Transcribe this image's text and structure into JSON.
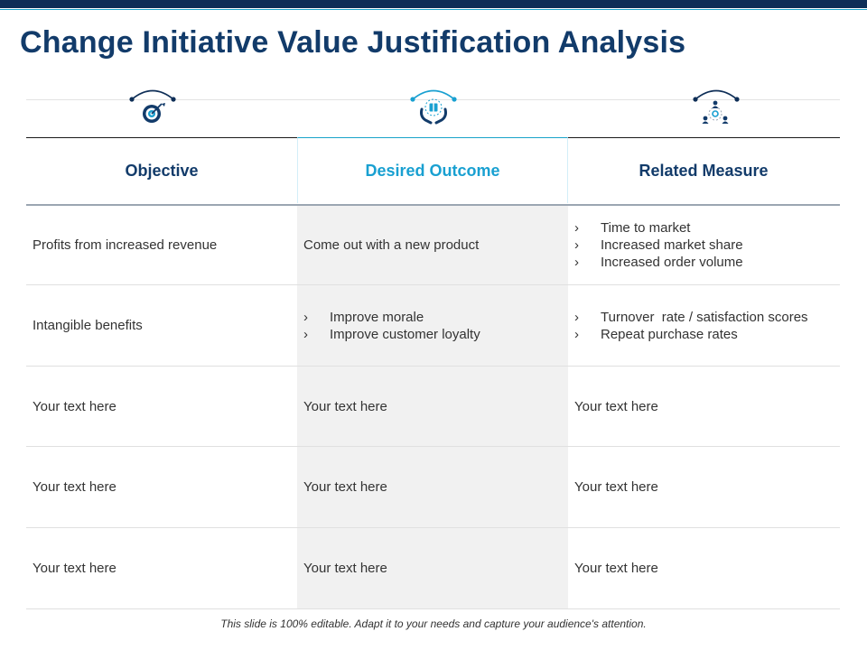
{
  "slide": {
    "title": "Change Initiative Value Justification Analysis",
    "footer": "This slide is 100% editable. Adapt it to your needs and capture your audience's attention."
  },
  "icons": [
    "target-icon",
    "hands-holding-gift-icon",
    "team-network-icon"
  ],
  "colors": {
    "dark_blue": "#123b6a",
    "accent": "#19a0d1",
    "mid_column_bg": "#f1f1f1"
  },
  "table": {
    "headers": [
      "Objective",
      "Desired Outcome",
      "Related Measure"
    ],
    "rows": [
      {
        "objective": "Profits from increased revenue",
        "outcome": [
          "Come out with a new product"
        ],
        "measure": [
          "Time to market",
          "Increased market share",
          "Increased order volume"
        ]
      },
      {
        "objective": "Intangible benefits",
        "outcome": [
          "Improve morale",
          "Improve customer loyalty"
        ],
        "measure": [
          "Turnover  rate / satisfaction scores",
          "Repeat purchase rates"
        ]
      },
      {
        "objective": "Your text here",
        "outcome": [
          "Your text here"
        ],
        "measure": [
          "Your text here"
        ]
      },
      {
        "objective": "Your text here",
        "outcome": [
          "Your text here"
        ],
        "measure": [
          "Your text here"
        ]
      },
      {
        "objective": "Your text here",
        "outcome": [
          "Your text here"
        ],
        "measure": [
          "Your text here"
        ]
      }
    ]
  }
}
